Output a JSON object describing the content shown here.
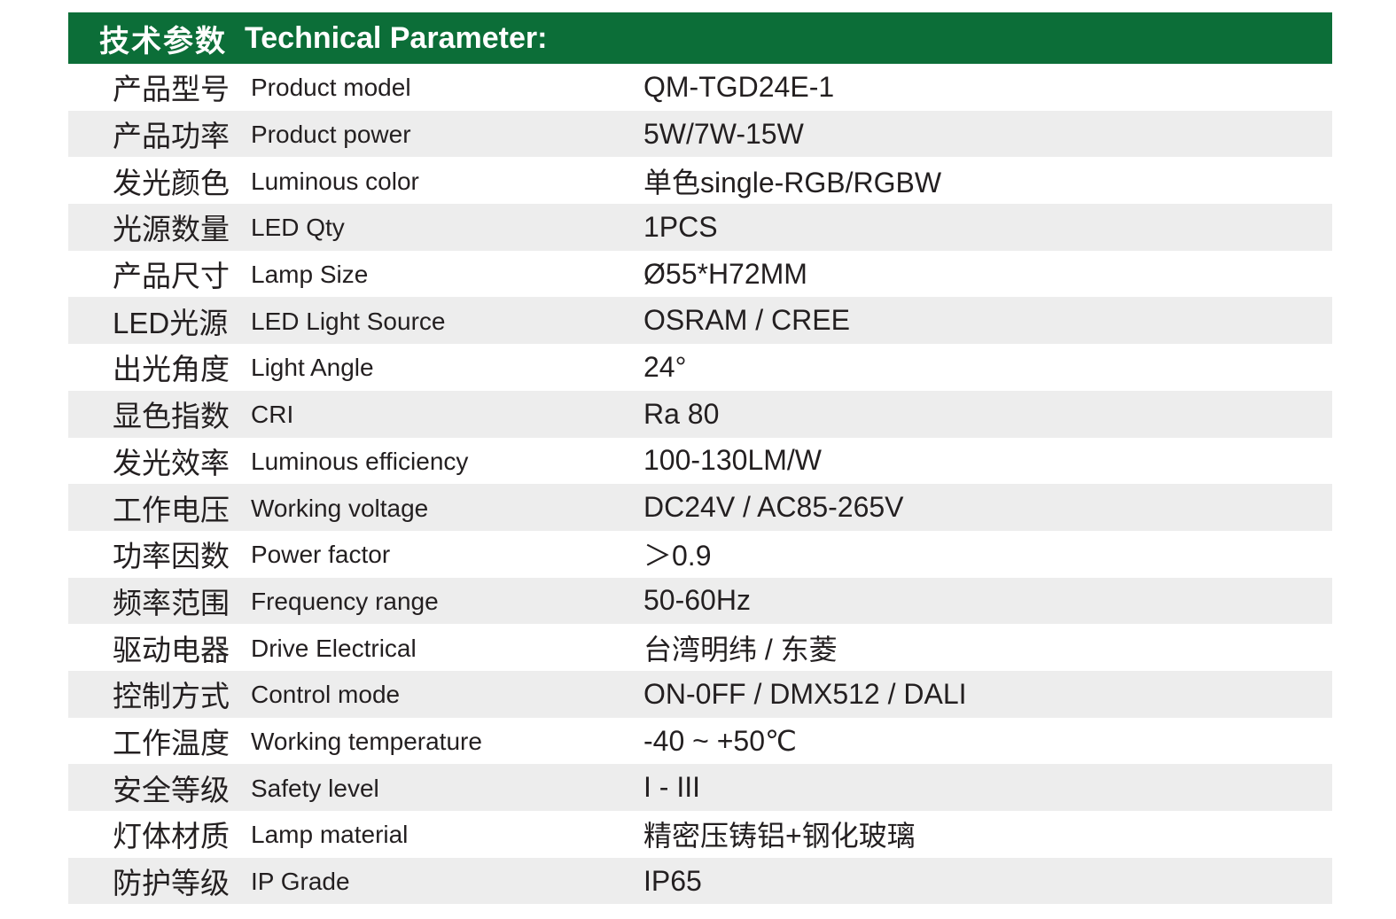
{
  "header": {
    "title_cn": "技术参数",
    "title_en": "Technical Parameter:"
  },
  "colors": {
    "header_bg": "#0C6E38",
    "header_text": "#FFFFFF",
    "row_alt_bg": "#EDEDED",
    "text": "#231F20"
  },
  "table": {
    "rows": [
      {
        "cn": "产品型号",
        "en": "Product model",
        "value": "QM-TGD24E-1"
      },
      {
        "cn": "产品功率",
        "en": "Product power",
        "value": "5W/7W-15W"
      },
      {
        "cn": "发光颜色",
        "en": "Luminous color",
        "value": "单色single-RGB/RGBW"
      },
      {
        "cn": "光源数量",
        "en": "LED Qty",
        "value": "1PCS"
      },
      {
        "cn": "产品尺寸",
        "en": "Lamp Size",
        "value": "Ø55*H72MM"
      },
      {
        "cn": "LED光源",
        "en": "LED Light Source",
        "value": "OSRAM / CREE"
      },
      {
        "cn": "出光角度",
        "en": "Light Angle",
        "value": "24°"
      },
      {
        "cn": "显色指数",
        "en": "CRI",
        "value": "Ra 80"
      },
      {
        "cn": "发光效率",
        "en": "Luminous efficiency",
        "value": "100-130LM/W"
      },
      {
        "cn": "工作电压",
        "en": "Working voltage",
        "value": "DC24V / AC85-265V"
      },
      {
        "cn": "功率因数",
        "en": "Power factor",
        "value": "＞0.9"
      },
      {
        "cn": "频率范围",
        "en": "Frequency range",
        "value": "50-60Hz"
      },
      {
        "cn": "驱动电器",
        "en": "Drive Electrical",
        "value": "台湾明纬 / 东菱"
      },
      {
        "cn": "控制方式",
        "en": "Control mode",
        "value": "ON-0FF / DMX512 / DALI"
      },
      {
        "cn": "工作温度",
        "en": "Working temperature",
        "value": "-40 ~ +50℃"
      },
      {
        "cn": "安全等级",
        "en": "Safety level",
        "value": "I - III"
      },
      {
        "cn": "灯体材质",
        "en": "Lamp material",
        "value": "精密压铸铝+钢化玻璃"
      },
      {
        "cn": "防护等级",
        "en": "IP Grade",
        "value": "IP65"
      }
    ]
  }
}
